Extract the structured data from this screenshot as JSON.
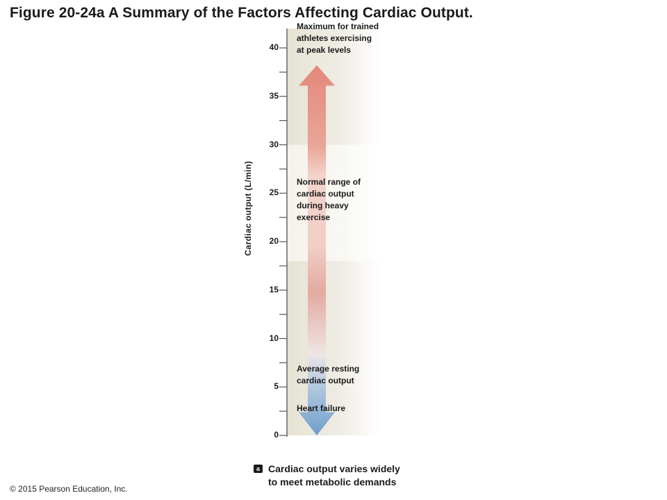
{
  "title": "Figure 20-24a A Summary of the Factors Affecting Cardiac Output.",
  "copyright": "© 2015 Pearson Education, Inc.",
  "axis": {
    "label": "Cardiac output (L/min)",
    "ticks": [
      "0",
      "5",
      "10",
      "15",
      "20",
      "25",
      "30",
      "35",
      "40"
    ],
    "range": [
      0,
      42
    ]
  },
  "zones": [
    {
      "name": "heart failure",
      "from": 0,
      "to": 3.2
    },
    {
      "name": "average resting",
      "from": 3.2,
      "to": 18
    },
    {
      "name": "normal exercise",
      "from": 18,
      "to": 30
    },
    {
      "name": "athlete maximum",
      "from": 30,
      "to": 38.2
    }
  ],
  "annotations": {
    "maximum": "Maximum for trained athletes exercising at peak levels",
    "normal": "Normal range of cardiac output during heavy exercise",
    "resting": "Average resting cardiac output",
    "failure": "Heart failure"
  },
  "caption": {
    "badge": "a",
    "text_line1": "Cardiac output varies widely",
    "text_line2": "to meet metabolic demands"
  },
  "colors": {
    "arrow_up": "#e5897a",
    "arrow_down": "#7aa6cc",
    "panel": "#ece9de",
    "panel_light": "#f7f6f1"
  }
}
